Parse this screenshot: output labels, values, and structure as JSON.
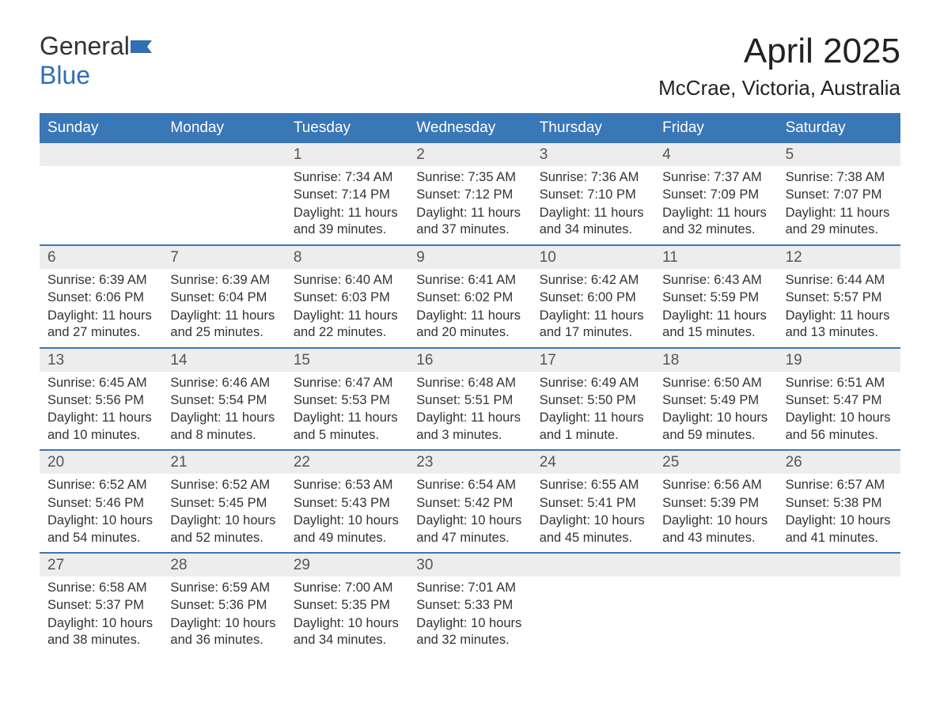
{
  "brand": {
    "word1": "General",
    "word2": "Blue",
    "accent_color": "#2f6fb5"
  },
  "title": "April 2025",
  "location": "McCrae, Victoria, Australia",
  "colors": {
    "header_bg": "#3a77b7",
    "daynum_bg": "#ededed",
    "week_border": "#3a77b7",
    "text": "#333333",
    "bg": "#ffffff"
  },
  "days_of_week": [
    "Sunday",
    "Monday",
    "Tuesday",
    "Wednesday",
    "Thursday",
    "Friday",
    "Saturday"
  ],
  "weeks": [
    [
      {
        "blank": true
      },
      {
        "blank": true
      },
      {
        "n": "1",
        "sunrise": "7:34 AM",
        "sunset": "7:14 PM",
        "daylight": "11 hours and 39 minutes."
      },
      {
        "n": "2",
        "sunrise": "7:35 AM",
        "sunset": "7:12 PM",
        "daylight": "11 hours and 37 minutes."
      },
      {
        "n": "3",
        "sunrise": "7:36 AM",
        "sunset": "7:10 PM",
        "daylight": "11 hours and 34 minutes."
      },
      {
        "n": "4",
        "sunrise": "7:37 AM",
        "sunset": "7:09 PM",
        "daylight": "11 hours and 32 minutes."
      },
      {
        "n": "5",
        "sunrise": "7:38 AM",
        "sunset": "7:07 PM",
        "daylight": "11 hours and 29 minutes."
      }
    ],
    [
      {
        "n": "6",
        "sunrise": "6:39 AM",
        "sunset": "6:06 PM",
        "daylight": "11 hours and 27 minutes."
      },
      {
        "n": "7",
        "sunrise": "6:39 AM",
        "sunset": "6:04 PM",
        "daylight": "11 hours and 25 minutes."
      },
      {
        "n": "8",
        "sunrise": "6:40 AM",
        "sunset": "6:03 PM",
        "daylight": "11 hours and 22 minutes."
      },
      {
        "n": "9",
        "sunrise": "6:41 AM",
        "sunset": "6:02 PM",
        "daylight": "11 hours and 20 minutes."
      },
      {
        "n": "10",
        "sunrise": "6:42 AM",
        "sunset": "6:00 PM",
        "daylight": "11 hours and 17 minutes."
      },
      {
        "n": "11",
        "sunrise": "6:43 AM",
        "sunset": "5:59 PM",
        "daylight": "11 hours and 15 minutes."
      },
      {
        "n": "12",
        "sunrise": "6:44 AM",
        "sunset": "5:57 PM",
        "daylight": "11 hours and 13 minutes."
      }
    ],
    [
      {
        "n": "13",
        "sunrise": "6:45 AM",
        "sunset": "5:56 PM",
        "daylight": "11 hours and 10 minutes."
      },
      {
        "n": "14",
        "sunrise": "6:46 AM",
        "sunset": "5:54 PM",
        "daylight": "11 hours and 8 minutes."
      },
      {
        "n": "15",
        "sunrise": "6:47 AM",
        "sunset": "5:53 PM",
        "daylight": "11 hours and 5 minutes."
      },
      {
        "n": "16",
        "sunrise": "6:48 AM",
        "sunset": "5:51 PM",
        "daylight": "11 hours and 3 minutes."
      },
      {
        "n": "17",
        "sunrise": "6:49 AM",
        "sunset": "5:50 PM",
        "daylight": "11 hours and 1 minute."
      },
      {
        "n": "18",
        "sunrise": "6:50 AM",
        "sunset": "5:49 PM",
        "daylight": "10 hours and 59 minutes."
      },
      {
        "n": "19",
        "sunrise": "6:51 AM",
        "sunset": "5:47 PM",
        "daylight": "10 hours and 56 minutes."
      }
    ],
    [
      {
        "n": "20",
        "sunrise": "6:52 AM",
        "sunset": "5:46 PM",
        "daylight": "10 hours and 54 minutes."
      },
      {
        "n": "21",
        "sunrise": "6:52 AM",
        "sunset": "5:45 PM",
        "daylight": "10 hours and 52 minutes."
      },
      {
        "n": "22",
        "sunrise": "6:53 AM",
        "sunset": "5:43 PM",
        "daylight": "10 hours and 49 minutes."
      },
      {
        "n": "23",
        "sunrise": "6:54 AM",
        "sunset": "5:42 PM",
        "daylight": "10 hours and 47 minutes."
      },
      {
        "n": "24",
        "sunrise": "6:55 AM",
        "sunset": "5:41 PM",
        "daylight": "10 hours and 45 minutes."
      },
      {
        "n": "25",
        "sunrise": "6:56 AM",
        "sunset": "5:39 PM",
        "daylight": "10 hours and 43 minutes."
      },
      {
        "n": "26",
        "sunrise": "6:57 AM",
        "sunset": "5:38 PM",
        "daylight": "10 hours and 41 minutes."
      }
    ],
    [
      {
        "n": "27",
        "sunrise": "6:58 AM",
        "sunset": "5:37 PM",
        "daylight": "10 hours and 38 minutes."
      },
      {
        "n": "28",
        "sunrise": "6:59 AM",
        "sunset": "5:36 PM",
        "daylight": "10 hours and 36 minutes."
      },
      {
        "n": "29",
        "sunrise": "7:00 AM",
        "sunset": "5:35 PM",
        "daylight": "10 hours and 34 minutes."
      },
      {
        "n": "30",
        "sunrise": "7:01 AM",
        "sunset": "5:33 PM",
        "daylight": "10 hours and 32 minutes."
      },
      {
        "blank": true
      },
      {
        "blank": true
      },
      {
        "blank": true
      }
    ]
  ],
  "labels": {
    "sunrise": "Sunrise: ",
    "sunset": "Sunset: ",
    "daylight": "Daylight: "
  }
}
